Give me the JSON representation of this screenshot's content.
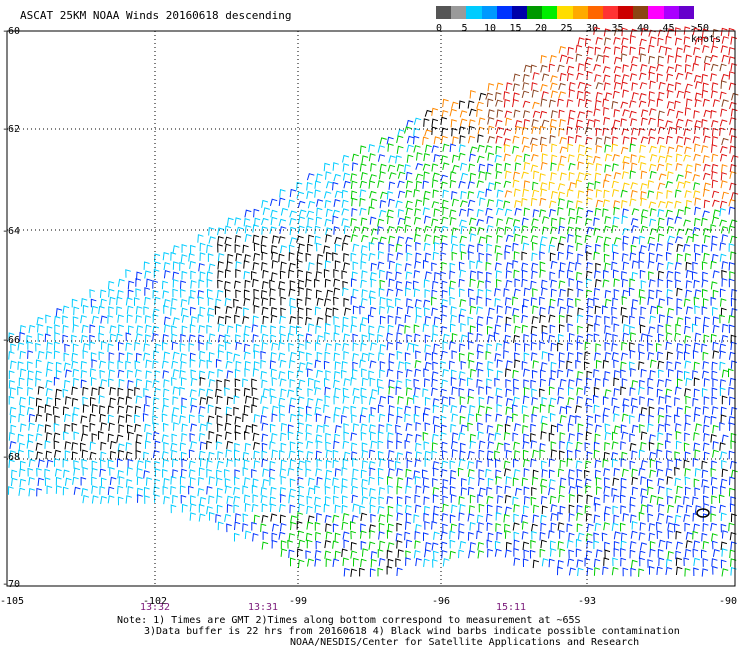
{
  "title": "ASCAT 25KM NOAA Winds 20160618 descending",
  "scale": {
    "colors": [
      "#555555",
      "#9a9a9a",
      "#00ccff",
      "#0099ff",
      "#0033ff",
      "#0000aa",
      "#009900",
      "#00ee00",
      "#ffdd00",
      "#ffaa00",
      "#ff6600",
      "#ff3333",
      "#cc0000",
      "#8b4513",
      "#ff00ff",
      "#aa00ff",
      "#6600cc"
    ],
    "labels": [
      "0",
      "5",
      "10",
      "15",
      "20",
      "25",
      "30",
      "35",
      "40",
      "45"
    ],
    "end_label": ">50 knots"
  },
  "latitude_labels": [
    "-60",
    "-62",
    "-64",
    "-66",
    "-68",
    "-70"
  ],
  "longitude_labels": [
    "-105",
    "-102",
    "-99",
    "-96",
    "-93",
    "-90"
  ],
  "time_labels": [
    "13:32",
    "13:31",
    "15:11"
  ],
  "note": {
    "line1": "Note: 1) Times are GMT 2)Times along bottom correspond to measurement at ~65S",
    "line2": "3)Data buffer is 22 hrs from 20160618 4) Black wind barbs indicate possible contamination",
    "line3": "NOAA/NESDIS/Center for Satellite Applications and Research"
  },
  "wind_colors": {
    "black": "#000000",
    "cyan": "#00ccff",
    "blue": "#0033ff",
    "green": "#00cc00",
    "yellow": "#ffcc00",
    "orange": "#ff8800",
    "red": "#dd1111",
    "brown": "#884422",
    "magenta": "#ff00ff"
  }
}
